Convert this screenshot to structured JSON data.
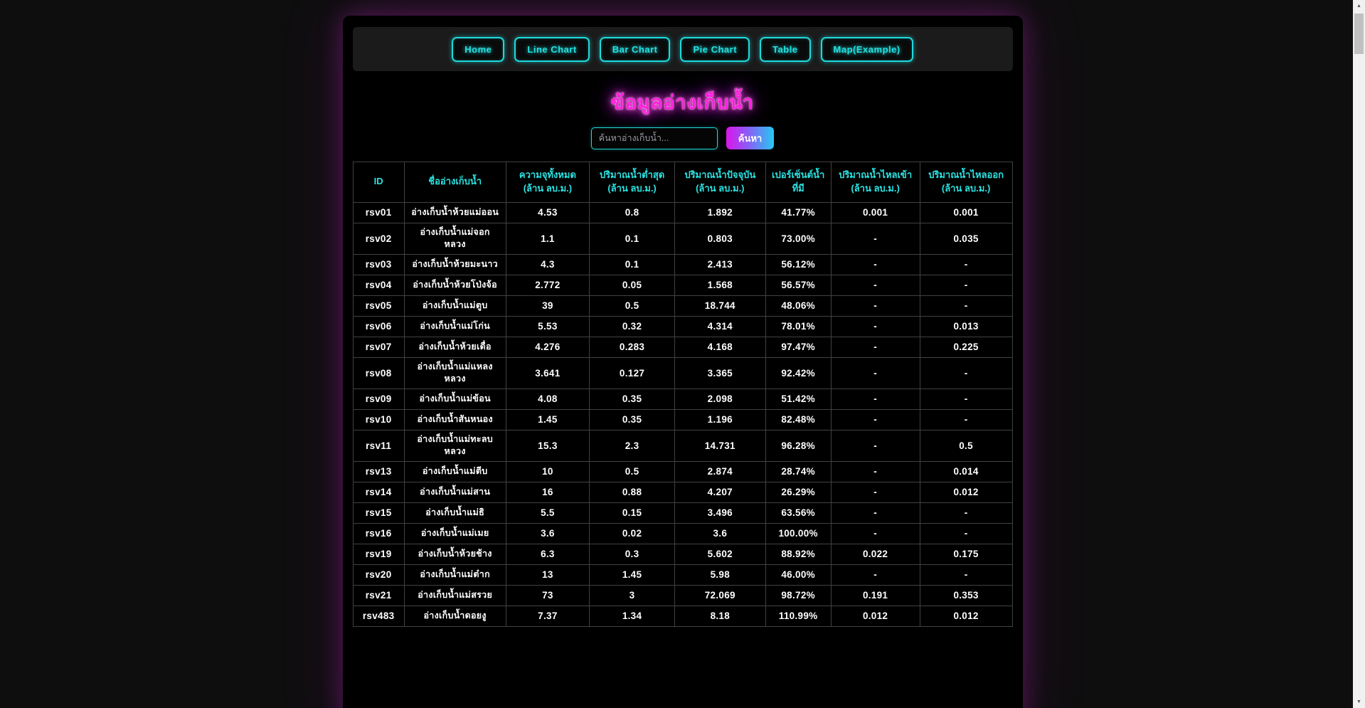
{
  "nav": {
    "items": [
      {
        "label": "Home"
      },
      {
        "label": "Line Chart"
      },
      {
        "label": "Bar Chart"
      },
      {
        "label": "Pie Chart"
      },
      {
        "label": "Table"
      },
      {
        "label": "Map(Example)"
      }
    ]
  },
  "title": "ข้อมูลอ่างเก็บน้ำ",
  "search": {
    "placeholder": "ค้นหาอ่างเก็บน้ำ...",
    "button_label": "ค้นหา"
  },
  "table": {
    "headers": [
      "ID",
      "ชื่ออ่างเก็บน้ำ",
      "ความจุทั้งหมด\n(ล้าน ลบ.ม.)",
      "ปริมาณน้ำต่ำสุด\n(ล้าน ลบ.ม.)",
      "ปริมาณน้ำปัจจุบัน\n(ล้าน ลบ.ม.)",
      "เปอร์เซ็นต์น้ำ\nที่มี",
      "ปริมาณน้ำไหลเข้า\n(ล้าน ลบ.ม.)",
      "ปริมาณน้ำไหลออก\n(ล้าน ลบ.ม.)"
    ],
    "rows": [
      [
        "rsv01",
        "อ่างเก็บน้ำห้วยแม่ออน",
        "4.53",
        "0.8",
        "1.892",
        "41.77%",
        "0.001",
        "0.001"
      ],
      [
        "rsv02",
        "อ่างเก็บน้ำแม่จอกหลวง",
        "1.1",
        "0.1",
        "0.803",
        "73.00%",
        "-",
        "0.035"
      ],
      [
        "rsv03",
        "อ่างเก็บน้ำห้วยมะนาว",
        "4.3",
        "0.1",
        "2.413",
        "56.12%",
        "-",
        "-"
      ],
      [
        "rsv04",
        "อ่างเก็บน้ำห้วยโป่งจ้อ",
        "2.772",
        "0.05",
        "1.568",
        "56.57%",
        "-",
        "-"
      ],
      [
        "rsv05",
        "อ่างเก็บน้ำแม่ตูบ",
        "39",
        "0.5",
        "18.744",
        "48.06%",
        "-",
        "-"
      ],
      [
        "rsv06",
        "อ่างเก็บน้ำแม่โก่น",
        "5.53",
        "0.32",
        "4.314",
        "78.01%",
        "-",
        "0.013"
      ],
      [
        "rsv07",
        "อ่างเก็บน้ำห้วยเดื่อ",
        "4.276",
        "0.283",
        "4.168",
        "97.47%",
        "-",
        "0.225"
      ],
      [
        "rsv08",
        "อ่างเก็บน้ำแม่แหลงหลวง",
        "3.641",
        "0.127",
        "3.365",
        "92.42%",
        "-",
        "-"
      ],
      [
        "rsv09",
        "อ่างเก็บน้ำแม่ข้อน",
        "4.08",
        "0.35",
        "2.098",
        "51.42%",
        "-",
        "-"
      ],
      [
        "rsv10",
        "อ่างเก็บน้ำสันหนอง",
        "1.45",
        "0.35",
        "1.196",
        "82.48%",
        "-",
        "-"
      ],
      [
        "rsv11",
        "อ่างเก็บน้ำแม่ทะลบหลวง",
        "15.3",
        "2.3",
        "14.731",
        "96.28%",
        "-",
        "0.5"
      ],
      [
        "rsv13",
        "อ่างเก็บน้ำแม่ตีบ",
        "10",
        "0.5",
        "2.874",
        "28.74%",
        "-",
        "0.014"
      ],
      [
        "rsv14",
        "อ่างเก็บน้ำแม่สาน",
        "16",
        "0.88",
        "4.207",
        "26.29%",
        "-",
        "0.012"
      ],
      [
        "rsv15",
        "อ่างเก็บน้ำแม่ธิ",
        "5.5",
        "0.15",
        "3.496",
        "63.56%",
        "-",
        "-"
      ],
      [
        "rsv16",
        "อ่างเก็บน้ำแม่เมย",
        "3.6",
        "0.02",
        "3.6",
        "100.00%",
        "-",
        "-"
      ],
      [
        "rsv19",
        "อ่างเก็บน้ำห้วยช้าง",
        "6.3",
        "0.3",
        "5.602",
        "88.92%",
        "0.022",
        "0.175"
      ],
      [
        "rsv20",
        "อ่างเก็บน้ำแม่ต๋าก",
        "13",
        "1.45",
        "5.98",
        "46.00%",
        "-",
        "-"
      ],
      [
        "rsv21",
        "อ่างเก็บน้ำแม่สรวย",
        "73",
        "3",
        "72.069",
        "98.72%",
        "0.191",
        "0.353"
      ],
      [
        "rsv483",
        "อ่างเก็บน้ำดอยงู",
        "7.37",
        "1.34",
        "8.18",
        "110.99%",
        "0.012",
        "0.012"
      ]
    ]
  },
  "colors": {
    "accent_cyan": "#1fd9db",
    "accent_magenta": "#ff1ede",
    "nav_background": "#1b1b1b",
    "page_background": "#0f0e0f",
    "container_background": "#000000",
    "table_border": "#414141",
    "search_gradient_start": "#d916e9",
    "search_gradient_end": "#27c8f2"
  },
  "scrollbar": {
    "up_icon": "▲",
    "down_icon": "▼"
  }
}
